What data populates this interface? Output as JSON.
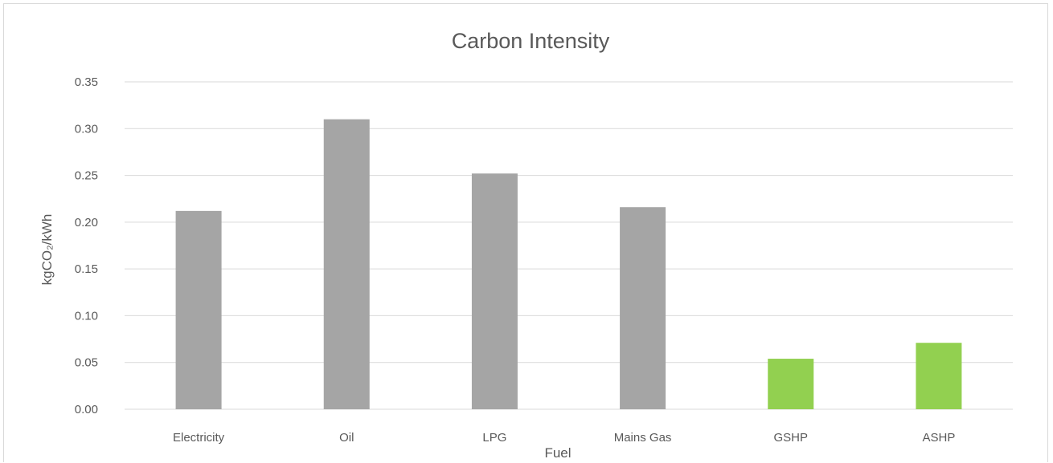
{
  "chart_data": {
    "type": "bar",
    "title": "Carbon Intensity",
    "xlabel": "Fuel",
    "ylabel": "kgCO₂/kWh",
    "categories": [
      "Electricity",
      "Oil",
      "LPG",
      "Mains Gas",
      "GSHP",
      "ASHP"
    ],
    "values": [
      0.212,
      0.31,
      0.252,
      0.216,
      0.054,
      0.071
    ],
    "bar_colors": [
      "#a5a5a5",
      "#a5a5a5",
      "#a5a5a5",
      "#a5a5a5",
      "#92d050",
      "#92d050"
    ],
    "ylim": [
      0,
      0.35
    ],
    "yticks": [
      "0.00",
      "0.05",
      "0.10",
      "0.15",
      "0.20",
      "0.25",
      "0.30",
      "0.35"
    ],
    "grid": true,
    "legend": "none"
  },
  "colors": {
    "grid": "#d9d9d9",
    "text": "#595959"
  }
}
